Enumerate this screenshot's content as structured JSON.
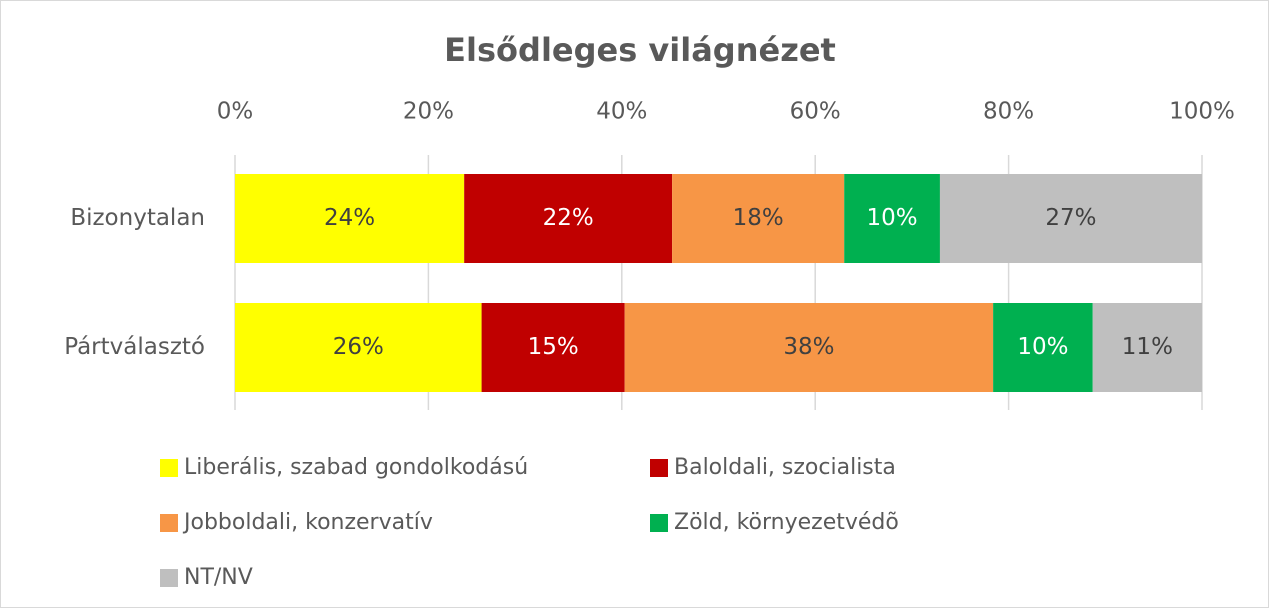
{
  "chart_data": {
    "type": "stacked_barh",
    "title": "Elsődleges világnézet",
    "categories": [
      "Bizonytalan",
      "Pártválasztó"
    ],
    "series": [
      {
        "name": "Liberális, szabad gondolkodású",
        "color": "#ffff00",
        "values": [
          23.7,
          25.5
        ],
        "value_labels": [
          "24%",
          "26%"
        ]
      },
      {
        "name": "Baloldali, szocialista",
        "color": "#c00000",
        "values": [
          21.5,
          14.8
        ],
        "value_labels": [
          "22%",
          "15%"
        ]
      },
      {
        "name": "Jobboldali, konzervatív",
        "color": "#f79646",
        "values": [
          17.8,
          38.1
        ],
        "value_labels": [
          "18%",
          "38%"
        ]
      },
      {
        "name": "Zöld, környezetvédõ",
        "color": "#00b050",
        "values": [
          9.9,
          10.3
        ],
        "value_labels": [
          "10%",
          "10%"
        ]
      },
      {
        "name": "NT/NV",
        "color": "#bfbfbf",
        "values": [
          27.1,
          11.3
        ],
        "value_labels": [
          "27%",
          "11%"
        ]
      }
    ],
    "xlim": [
      0,
      100
    ],
    "xticks": [
      {
        "value": 0,
        "label": "0%"
      },
      {
        "value": 20,
        "label": "20%"
      },
      {
        "value": 40,
        "label": "40%"
      },
      {
        "value": 60,
        "label": "60%"
      },
      {
        "value": 80,
        "label": "80%"
      },
      {
        "value": 100,
        "label": "100%"
      }
    ],
    "grid": true,
    "legend": "bottom"
  }
}
